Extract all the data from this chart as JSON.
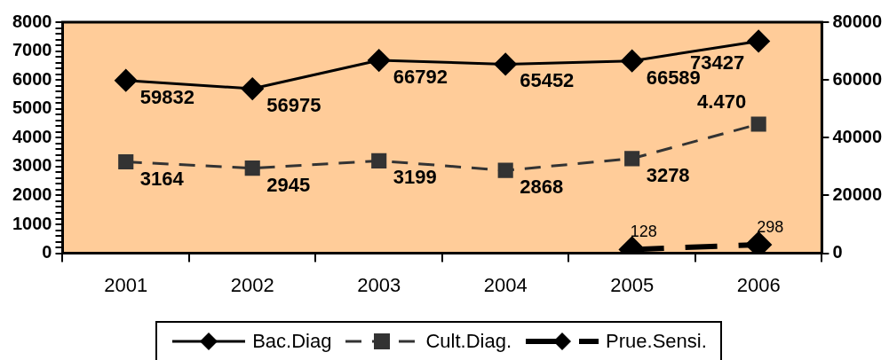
{
  "chart_data": {
    "type": "line",
    "categories": [
      "2001",
      "2002",
      "2003",
      "2004",
      "2005",
      "2006"
    ],
    "series": [
      {
        "name": "Bac.Diag",
        "color": "#000000",
        "axis": "y2",
        "marker": "diamond",
        "line_style": "solid",
        "values": [
          59832,
          56975,
          66792,
          65452,
          66589,
          73427
        ]
      },
      {
        "name": "Cult.Diag.",
        "color": "#333333",
        "marker": "square",
        "line_style": "dashed",
        "values": [
          3164,
          2945,
          3199,
          2868,
          3278,
          4470
        ],
        "value_labels": [
          "3164",
          "2945",
          "3199",
          "2868",
          "3278",
          "4.470"
        ]
      },
      {
        "name": "Prue.Sensi.",
        "color": "#000000",
        "marker": "diamond",
        "line_style": "dashed",
        "values": [
          null,
          null,
          null,
          null,
          128,
          298
        ]
      }
    ],
    "ylim": [
      0,
      8000
    ],
    "yticks": [
      0,
      {
        "value": 200,
        "label": null
      },
      {
        "value": 400,
        "label": null
      },
      {
        "value": 600,
        "label": null
      },
      {
        "value": 800,
        "label": null
      },
      1000,
      {
        "value": 1200,
        "label": null
      },
      {
        "value": 1400,
        "label": null
      },
      {
        "value": 1600,
        "label": null
      },
      {
        "value": 1800,
        "label": null
      },
      2000,
      {
        "value": 2200,
        "label": null
      },
      {
        "value": 2400,
        "label": null
      },
      {
        "value": 2600,
        "label": null
      },
      {
        "value": 2800,
        "label": null
      },
      3000,
      {
        "value": 3200,
        "label": null
      },
      {
        "value": 3400,
        "label": null
      },
      {
        "value": 3600,
        "label": null
      },
      {
        "value": 3800,
        "label": null
      },
      4000,
      {
        "value": 4200,
        "label": null
      },
      {
        "value": 4400,
        "label": null
      },
      {
        "value": 4600,
        "label": null
      },
      {
        "value": 4800,
        "label": null
      },
      5000,
      {
        "value": 5200,
        "label": null
      },
      {
        "value": 5400,
        "label": null
      },
      {
        "value": 5600,
        "label": null
      },
      {
        "value": 5800,
        "label": null
      },
      6000,
      {
        "value": 6200,
        "label": null
      },
      {
        "value": 6400,
        "label": null
      },
      {
        "value": 6600,
        "label": null
      },
      {
        "value": 6800,
        "label": null
      },
      7000,
      {
        "value": 7200,
        "label": null
      },
      {
        "value": 7400,
        "label": null
      },
      {
        "value": 7600,
        "label": null
      },
      {
        "value": 7800,
        "label": null
      },
      8000
    ],
    "y2lim": [
      0,
      80000
    ],
    "y2ticks": [
      0,
      20000,
      40000,
      60000,
      80000
    ],
    "data_labels": true,
    "grid": false,
    "legend": "bottom"
  }
}
